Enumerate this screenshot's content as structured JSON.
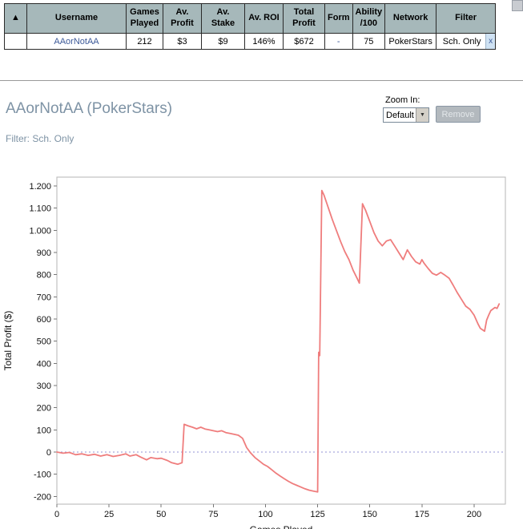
{
  "table": {
    "sort_icon": "▲",
    "columns": [
      "Username",
      "Games Played",
      "Av. Profit",
      "Av. Stake",
      "Av. ROI",
      "Total Profit",
      "Form",
      "Ability /100",
      "Network",
      "Filter"
    ],
    "row": {
      "username": "AAorNotAA",
      "games_played": "212",
      "av_profit": "$3",
      "av_stake": "$9",
      "av_roi": "146%",
      "total_profit": "$672",
      "form": "-",
      "ability": "75",
      "network": "PokerStars",
      "filter": "Sch. Only",
      "remove_label": "x"
    }
  },
  "header": {
    "title": "AAorNotAA (PokerStars)",
    "filter_line": "Filter: Sch. Only",
    "zoom_label": "Zoom In:",
    "zoom_value": "Default",
    "remove_button": "Remove"
  },
  "chart_data": {
    "type": "line",
    "title": "",
    "xlabel": "Games Played",
    "ylabel": "Total Profit ($)",
    "xlim": [
      0,
      215
    ],
    "ylim": [
      -235,
      1240
    ],
    "xticks": [
      0,
      25,
      50,
      75,
      100,
      125,
      150,
      175,
      200
    ],
    "ytick_values": [
      -200,
      -100,
      0,
      100,
      200,
      300,
      400,
      500,
      600,
      700,
      800,
      900,
      1000,
      1100,
      1200
    ],
    "ytick_labels": [
      "-200",
      "-100",
      "0",
      "100",
      "200",
      "300",
      "400",
      "500",
      "600",
      "700",
      "800",
      "900",
      "1.000",
      "1.100",
      "1.200"
    ],
    "grid": false,
    "legend": false,
    "line_color": "#ef7d7d",
    "zero_line_color": "#9393d6",
    "series": [
      {
        "name": "Total Profit",
        "points": [
          [
            0,
            0
          ],
          [
            3,
            -5
          ],
          [
            6,
            -2
          ],
          [
            9,
            -12
          ],
          [
            12,
            -8
          ],
          [
            15,
            -15
          ],
          [
            18,
            -10
          ],
          [
            21,
            -18
          ],
          [
            24,
            -12
          ],
          [
            27,
            -20
          ],
          [
            30,
            -15
          ],
          [
            33,
            -8
          ],
          [
            35,
            -18
          ],
          [
            38,
            -12
          ],
          [
            40,
            -22
          ],
          [
            43,
            -35
          ],
          [
            45,
            -25
          ],
          [
            48,
            -30
          ],
          [
            50,
            -28
          ],
          [
            53,
            -38
          ],
          [
            55,
            -48
          ],
          [
            58,
            -55
          ],
          [
            60,
            -48
          ],
          [
            61,
            125
          ],
          [
            63,
            118
          ],
          [
            65,
            112
          ],
          [
            67,
            105
          ],
          [
            69,
            112
          ],
          [
            71,
            104
          ],
          [
            73,
            100
          ],
          [
            75,
            96
          ],
          [
            77,
            92
          ],
          [
            79,
            96
          ],
          [
            81,
            88
          ],
          [
            83,
            84
          ],
          [
            85,
            80
          ],
          [
            87,
            76
          ],
          [
            89,
            62
          ],
          [
            91,
            20
          ],
          [
            93,
            -5
          ],
          [
            95,
            -25
          ],
          [
            97,
            -40
          ],
          [
            99,
            -55
          ],
          [
            101,
            -65
          ],
          [
            103,
            -80
          ],
          [
            105,
            -95
          ],
          [
            107,
            -108
          ],
          [
            109,
            -120
          ],
          [
            111,
            -132
          ],
          [
            113,
            -142
          ],
          [
            115,
            -150
          ],
          [
            117,
            -158
          ],
          [
            119,
            -166
          ],
          [
            121,
            -172
          ],
          [
            123,
            -176
          ],
          [
            125,
            -180
          ],
          [
            125.5,
            450
          ],
          [
            126,
            435
          ],
          [
            127,
            1180
          ],
          [
            128,
            1160
          ],
          [
            130,
            1105
          ],
          [
            132,
            1050
          ],
          [
            134,
            1000
          ],
          [
            136,
            950
          ],
          [
            138,
            905
          ],
          [
            140,
            868
          ],
          [
            142,
            820
          ],
          [
            144,
            782
          ],
          [
            145,
            762
          ],
          [
            146.5,
            1120
          ],
          [
            148,
            1090
          ],
          [
            150,
            1040
          ],
          [
            152,
            990
          ],
          [
            154,
            952
          ],
          [
            156,
            930
          ],
          [
            158,
            952
          ],
          [
            160,
            958
          ],
          [
            162,
            928
          ],
          [
            164,
            898
          ],
          [
            166,
            868
          ],
          [
            168,
            912
          ],
          [
            170,
            882
          ],
          [
            172,
            858
          ],
          [
            174,
            848
          ],
          [
            175,
            868
          ],
          [
            176,
            852
          ],
          [
            178,
            828
          ],
          [
            180,
            806
          ],
          [
            182,
            798
          ],
          [
            184,
            810
          ],
          [
            186,
            798
          ],
          [
            188,
            784
          ],
          [
            190,
            752
          ],
          [
            192,
            718
          ],
          [
            194,
            688
          ],
          [
            196,
            658
          ],
          [
            198,
            644
          ],
          [
            200,
            618
          ],
          [
            202,
            576
          ],
          [
            203,
            558
          ],
          [
            205,
            545
          ],
          [
            206,
            595
          ],
          [
            207,
            618
          ],
          [
            208,
            638
          ],
          [
            210,
            652
          ],
          [
            211,
            648
          ],
          [
            212,
            668
          ]
        ]
      }
    ]
  }
}
